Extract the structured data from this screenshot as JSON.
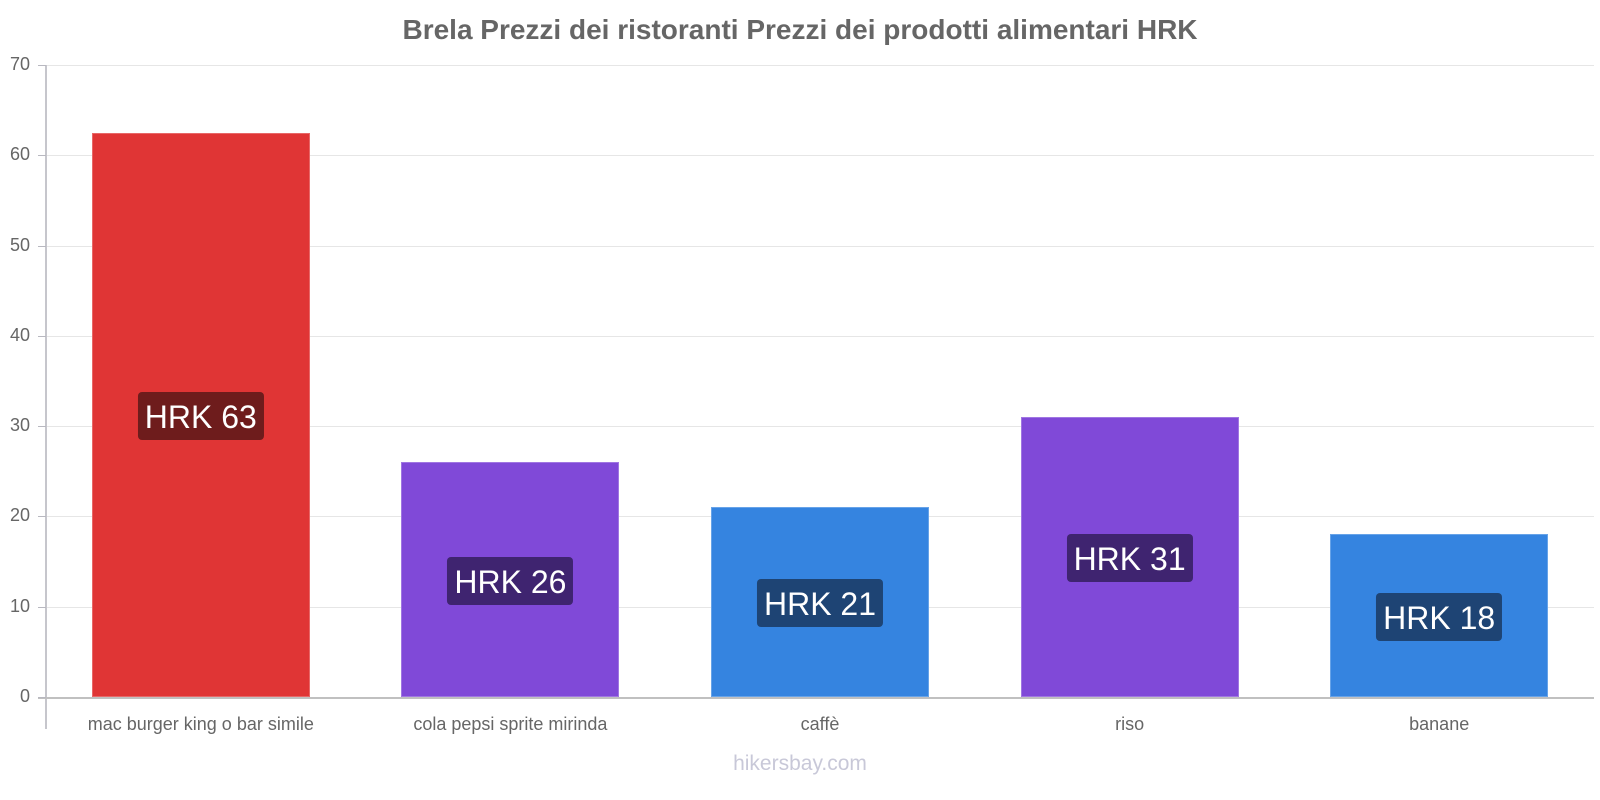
{
  "chart_data": {
    "type": "bar",
    "title": "Brela Prezzi dei ristoranti Prezzi dei prodotti alimentari HRK",
    "xlabel": "",
    "ylabel": "",
    "ylim": [
      0,
      70
    ],
    "yticks": [
      0,
      10,
      20,
      30,
      40,
      50,
      60,
      70
    ],
    "grid": true,
    "legend": null,
    "categories": [
      "mac burger king o bar simile",
      "cola pepsi sprite mirinda",
      "caffè",
      "riso",
      "banane"
    ],
    "values": [
      62.5,
      26,
      21,
      31,
      18
    ],
    "data_labels": [
      "HRK 63",
      "HRK 26",
      "HRK 21",
      "HRK 31",
      "HRK 18"
    ],
    "bar_colors": [
      "#e03535",
      "#8049d8",
      "#3584e0",
      "#8049d8",
      "#3584e0"
    ],
    "label_colors": [
      "#6e1c1c",
      "#3f2470",
      "#1e4474",
      "#3f2470",
      "#1e4474"
    ]
  },
  "watermark": "hikersbay.com"
}
